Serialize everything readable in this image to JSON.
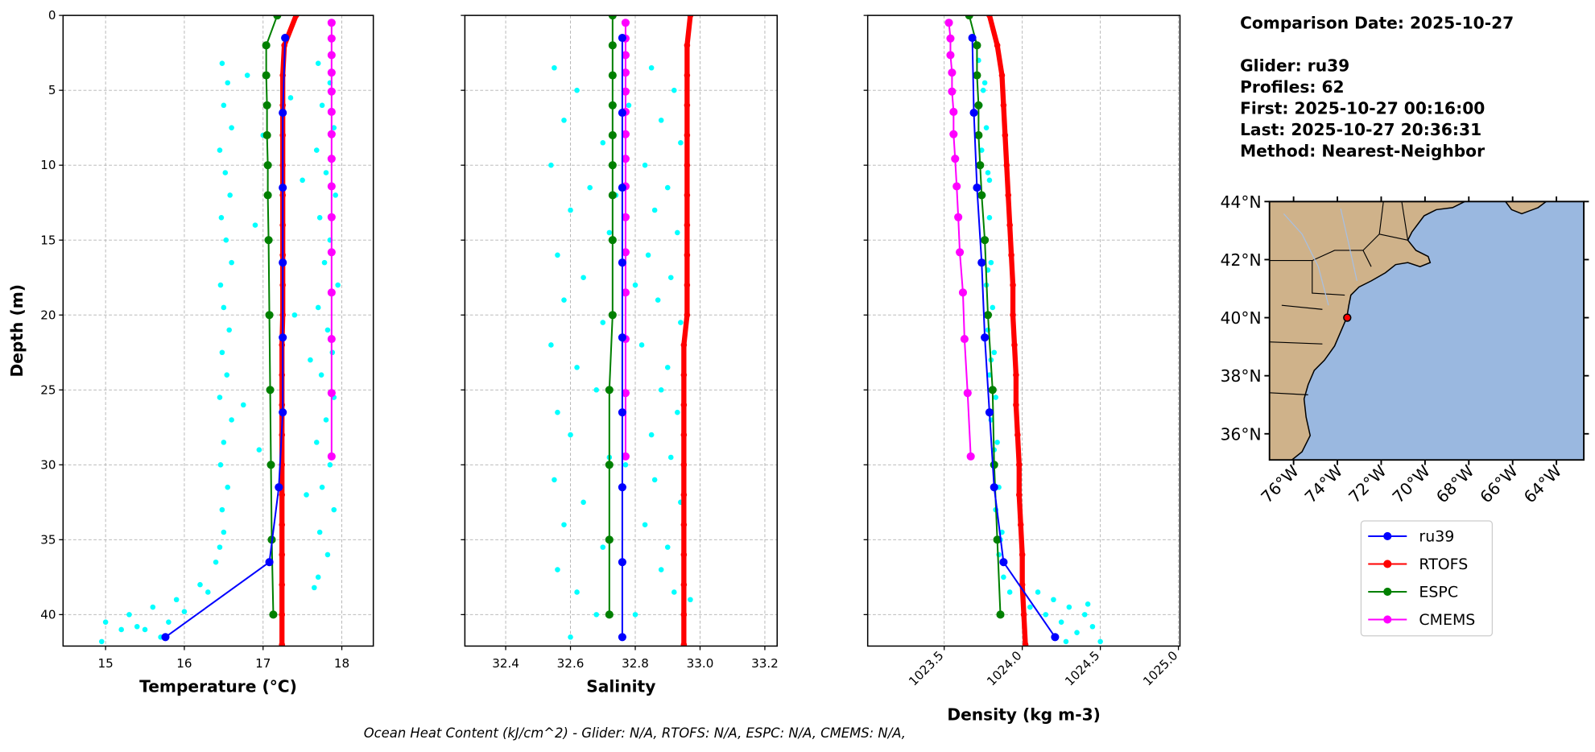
{
  "chart_data": [
    {
      "type": "profile",
      "xlabel": "Temperature (°C)",
      "ylabel": "Depth (m)",
      "xlim": [
        14.46,
        18.4
      ],
      "xticks": [
        15,
        16,
        17,
        18
      ],
      "ylim": [
        42.1,
        0
      ],
      "yticks": [
        0,
        5,
        10,
        15,
        20,
        25,
        30,
        35,
        40
      ],
      "ytick_labels": true,
      "grid": true,
      "scatter": {
        "color": "#00ffff",
        "x": [
          16.48,
          16.55,
          16.5,
          16.6,
          16.45,
          16.52,
          16.58,
          16.47,
          16.53,
          16.6,
          16.46,
          16.5,
          16.57,
          16.48,
          16.54,
          16.45,
          16.6,
          16.5,
          16.46,
          16.55,
          16.48,
          16.5,
          16.45,
          16.4,
          17.7,
          17.85,
          17.75,
          17.9,
          17.68,
          17.8,
          17.92,
          17.72,
          17.85,
          17.78,
          17.95,
          17.7,
          17.82,
          17.88,
          17.74,
          17.9,
          17.8,
          17.68,
          17.85,
          17.75,
          17.9,
          17.72,
          17.82,
          17.7,
          17.65,
          16.8,
          17.0,
          16.9,
          17.5,
          17.4,
          16.75,
          17.55,
          16.95,
          17.35,
          17.6,
          16.2,
          15.9,
          15.6,
          15.3,
          15.0,
          15.2,
          14.95,
          15.5,
          15.8,
          16.0,
          16.3,
          15.4,
          15.7
        ],
        "y": [
          3.2,
          4.5,
          6,
          7.5,
          9,
          10.5,
          12,
          13.5,
          15,
          16.5,
          18,
          19.5,
          21,
          22.5,
          24,
          25.5,
          27,
          28.5,
          30,
          31.5,
          33,
          34.5,
          35.5,
          36.5,
          3.2,
          4.5,
          6,
          7.5,
          9,
          10.5,
          12,
          13.5,
          15,
          16.5,
          18,
          19.5,
          21,
          22.5,
          24,
          25.5,
          27,
          28.5,
          30,
          31.5,
          33,
          34.5,
          36,
          37.5,
          38.2,
          4,
          8,
          14,
          11,
          20,
          26,
          32,
          29,
          5.5,
          23,
          38,
          39,
          39.5,
          40,
          40.5,
          41,
          41.8,
          41,
          40.5,
          39.8,
          38.5,
          40.8,
          41.5
        ]
      },
      "series": [
        {
          "name": "ru39",
          "color": "#0000ff",
          "x": [
            17.28,
            17.25,
            17.25,
            17.25,
            17.25,
            17.25,
            17.2,
            17.08,
            15.76
          ],
          "y": [
            1.5,
            6.5,
            11.5,
            16.5,
            21.5,
            26.5,
            31.5,
            36.5,
            41.5
          ]
        },
        {
          "name": "RTOFS",
          "color": "#ff0000",
          "x": [
            17.42,
            17.27,
            17.25,
            17.25,
            17.25,
            17.25,
            17.25,
            17.25,
            17.25,
            17.25,
            17.25,
            17.24,
            17.24,
            17.24,
            17.24,
            17.24,
            17.24,
            17.24,
            17.24,
            17.24,
            17.24,
            17.24
          ],
          "y": [
            0,
            2,
            4,
            6,
            8,
            10,
            12,
            14,
            16,
            18,
            20,
            22,
            24,
            26,
            28,
            30,
            32,
            34,
            36,
            38,
            40,
            42
          ]
        },
        {
          "name": "ESPC",
          "color": "#008000",
          "x": [
            17.18,
            17.04,
            17.04,
            17.05,
            17.05,
            17.06,
            17.06,
            17.07,
            17.08,
            17.09,
            17.1,
            17.11,
            17.13
          ],
          "y": [
            0,
            2,
            4,
            6,
            8,
            10,
            12,
            15,
            20,
            25,
            30,
            35,
            40
          ]
        },
        {
          "name": "CMEMS",
          "color": "#ff00ff",
          "x": [
            17.87,
            17.87,
            17.87,
            17.87,
            17.87,
            17.87,
            17.87,
            17.87,
            17.87,
            17.87,
            17.87,
            17.87,
            17.87,
            17.87,
            17.87
          ],
          "y": [
            0.49,
            1.54,
            2.65,
            3.82,
            5.08,
            6.44,
            7.93,
            9.57,
            11.41,
            13.47,
            15.81,
            18.5,
            21.6,
            25.21,
            29.44
          ]
        }
      ]
    },
    {
      "type": "profile",
      "xlabel": "Salinity",
      "xlim": [
        32.274,
        33.238
      ],
      "xticks": [
        32.4,
        32.6,
        32.8,
        {
          "value": 33,
          "label": "33.0"
        },
        33.2
      ],
      "ylim": [
        42.1,
        0
      ],
      "yticks": [
        0,
        5,
        10,
        15,
        20,
        25,
        30,
        35,
        40
      ],
      "ytick_labels": false,
      "grid": true,
      "scatter": {
        "color": "#00ffff",
        "x": [
          32.55,
          32.62,
          32.58,
          32.7,
          32.54,
          32.66,
          32.6,
          32.72,
          32.56,
          32.64,
          32.58,
          32.7,
          32.54,
          32.62,
          32.68,
          32.56,
          32.6,
          32.72,
          32.55,
          32.64,
          32.58,
          32.7,
          32.56,
          32.62,
          32.68,
          32.6,
          32.85,
          32.92,
          32.88,
          32.94,
          32.83,
          32.9,
          32.86,
          32.93,
          32.84,
          32.91,
          32.87,
          32.94,
          32.82,
          32.9,
          32.88,
          32.93,
          32.85,
          32.91,
          32.86,
          32.94,
          32.83,
          32.9,
          32.88,
          32.92,
          32.8,
          32.76,
          32.97,
          32.78,
          32.8,
          32.77,
          32.74
        ],
        "y": [
          3.5,
          5,
          7,
          8.5,
          10,
          11.5,
          13,
          14.5,
          16,
          17.5,
          19,
          20.5,
          22,
          23.5,
          25,
          26.5,
          28,
          29.5,
          31,
          32.5,
          34,
          35.5,
          37,
          38.5,
          40,
          41.5,
          3.5,
          5,
          7,
          8.5,
          10,
          11.5,
          13,
          14.5,
          16,
          17.5,
          19,
          20.5,
          22,
          23.5,
          25,
          26.5,
          28,
          29.5,
          31,
          32.5,
          34,
          35.5,
          37,
          38.5,
          40,
          41.5,
          39,
          6,
          18,
          30,
          12
        ]
      },
      "series": [
        {
          "color": "#0000ff",
          "x": [
            32.76,
            32.76,
            32.76,
            32.76,
            32.76,
            32.76,
            32.76,
            32.76,
            32.76
          ],
          "y": [
            1.5,
            6.5,
            11.5,
            16.5,
            21.5,
            26.5,
            31.5,
            36.5,
            41.5
          ]
        },
        {
          "color": "#ff0000",
          "x": [
            32.97,
            32.96,
            32.96,
            32.96,
            32.96,
            32.96,
            32.96,
            32.96,
            32.96,
            32.96,
            32.96,
            32.95,
            32.95,
            32.95,
            32.95,
            32.95,
            32.95,
            32.95,
            32.95,
            32.95,
            32.95,
            32.95
          ],
          "y": [
            0,
            2,
            4,
            6,
            8,
            10,
            12,
            14,
            16,
            18,
            20,
            22,
            24,
            26,
            28,
            30,
            32,
            34,
            36,
            38,
            40,
            42
          ]
        },
        {
          "color": "#008000",
          "x": [
            32.73,
            32.73,
            32.73,
            32.73,
            32.73,
            32.73,
            32.73,
            32.73,
            32.73,
            32.72,
            32.72,
            32.72,
            32.72
          ],
          "y": [
            0,
            2,
            4,
            6,
            8,
            10,
            12,
            15,
            20,
            25,
            30,
            35,
            40
          ]
        },
        {
          "color": "#ff00ff",
          "x": [
            32.77,
            32.77,
            32.77,
            32.77,
            32.77,
            32.77,
            32.77,
            32.77,
            32.77,
            32.77,
            32.77,
            32.77,
            32.77,
            32.77,
            32.77
          ],
          "y": [
            0.49,
            1.54,
            2.65,
            3.82,
            5.08,
            6.44,
            7.93,
            9.57,
            11.41,
            13.47,
            15.81,
            18.5,
            21.6,
            25.21,
            29.44
          ]
        }
      ]
    },
    {
      "type": "profile",
      "xlabel": "Density (kg m-3)",
      "xtick_rotation": 45,
      "xlim": [
        1023.01,
        1025.01
      ],
      "xticks": [
        1023.5,
        {
          "value": 1024,
          "label": "1024.0"
        },
        1024.5,
        {
          "value": 1025,
          "label": "1025.0"
        }
      ],
      "ylim": [
        42.1,
        0
      ],
      "yticks": [
        0,
        5,
        10,
        15,
        20,
        25,
        30,
        35,
        40
      ],
      "ytick_labels": false,
      "grid": true,
      "scatter": {
        "color": "#00ffff",
        "x": [
          1023.72,
          1023.76,
          1023.73,
          1023.77,
          1023.74,
          1023.78,
          1023.75,
          1023.79,
          1023.76,
          1023.8,
          1023.77,
          1023.81,
          1023.78,
          1023.82,
          1023.79,
          1023.83,
          1023.8,
          1023.84,
          1023.81,
          1023.85,
          1023.83,
          1023.87,
          1023.85,
          1023.88,
          1023.92,
          1023.75,
          1023.79,
          1023.78,
          1023.8,
          1023.82,
          1023.86,
          1024.1,
          1024.2,
          1024.3,
          1024.4,
          1024.45,
          1024.35,
          1024.25,
          1024.15,
          1024.5,
          1024.05,
          1024.28,
          1024.42
        ],
        "y": [
          3,
          4.5,
          6,
          7.5,
          9,
          10.5,
          12,
          13.5,
          15,
          16.5,
          18,
          19.5,
          21,
          22.5,
          24,
          25.5,
          27,
          28.5,
          30,
          31.5,
          33,
          34.5,
          36,
          37.5,
          38.5,
          5,
          11,
          17,
          23,
          29,
          35,
          38.5,
          39,
          39.5,
          40,
          40.8,
          41.2,
          40.5,
          40,
          41.8,
          39.5,
          41.8,
          39.3
        ]
      },
      "series": [
        {
          "color": "#0000ff",
          "x": [
            1023.68,
            1023.69,
            1023.71,
            1023.74,
            1023.76,
            1023.79,
            1023.82,
            1023.88,
            1024.21
          ],
          "y": [
            1.5,
            6.5,
            11.5,
            16.5,
            21.5,
            26.5,
            31.5,
            36.5,
            41.5
          ]
        },
        {
          "color": "#ff0000",
          "x": [
            1023.79,
            1023.84,
            1023.87,
            1023.88,
            1023.89,
            1023.9,
            1023.91,
            1023.92,
            1023.93,
            1023.94,
            1023.94,
            1023.95,
            1023.96,
            1023.96,
            1023.97,
            1023.98,
            1023.98,
            1023.99,
            1024.0,
            1024.0,
            1024.01,
            1024.02
          ],
          "y": [
            0,
            2,
            4,
            6,
            8,
            10,
            12,
            14,
            16,
            18,
            20,
            22,
            24,
            26,
            28,
            30,
            32,
            34,
            36,
            38,
            40,
            42
          ]
        },
        {
          "color": "#008000",
          "x": [
            1023.66,
            1023.71,
            1023.71,
            1023.72,
            1023.72,
            1023.73,
            1023.74,
            1023.76,
            1023.78,
            1023.81,
            1023.82,
            1023.84,
            1023.86
          ],
          "y": [
            0,
            2,
            4,
            6,
            8,
            10,
            12,
            15,
            20,
            25,
            30,
            35,
            40
          ]
        },
        {
          "color": "#ff00ff",
          "x": [
            1023.53,
            1023.54,
            1023.54,
            1023.55,
            1023.55,
            1023.56,
            1023.56,
            1023.57,
            1023.58,
            1023.59,
            1023.6,
            1023.62,
            1023.63,
            1023.65,
            1023.67
          ],
          "y": [
            0.49,
            1.54,
            2.65,
            3.82,
            5.08,
            6.44,
            7.93,
            9.57,
            11.41,
            13.47,
            15.81,
            18.5,
            21.6,
            25.21,
            29.44
          ]
        }
      ]
    },
    {
      "type": "map",
      "xtick_rotation": 45,
      "xlim": [
        -77.1,
        -62.75
      ],
      "ylim": [
        35.1,
        44
      ],
      "xticks": [
        {
          "value": -76,
          "label": "76°W"
        },
        {
          "value": -74,
          "label": "74°W"
        },
        {
          "value": -72,
          "label": "72°W"
        },
        {
          "value": -70,
          "label": "70°W"
        },
        {
          "value": -68,
          "label": "68°W"
        },
        {
          "value": -66,
          "label": "66°W"
        },
        {
          "value": -64,
          "label": "64°W"
        }
      ],
      "yticks": [
        {
          "value": 36,
          "label": "36°N"
        },
        {
          "value": 38,
          "label": "38°N"
        },
        {
          "value": 40,
          "label": "40°N"
        },
        {
          "value": 42,
          "label": "42°N"
        },
        {
          "value": 44,
          "label": "44°N"
        }
      ],
      "glider_position": {
        "lon": -73.55,
        "lat": 40.0,
        "color": "#ff0000"
      }
    }
  ],
  "info": [
    "Comparison Date: 2025-10-27",
    "Glider: ru39",
    "Profiles: 62",
    "First: 2025-10-27 00:16:00",
    "Last: 2025-10-27 20:36:31",
    "Method: Nearest-Neighbor"
  ],
  "footer": "Ocean Heat Content (kJ/cm^2) - Glider: N/A,  RTOFS: N/A,  ESPC: N/A,  CMEMS: N/A,"
}
